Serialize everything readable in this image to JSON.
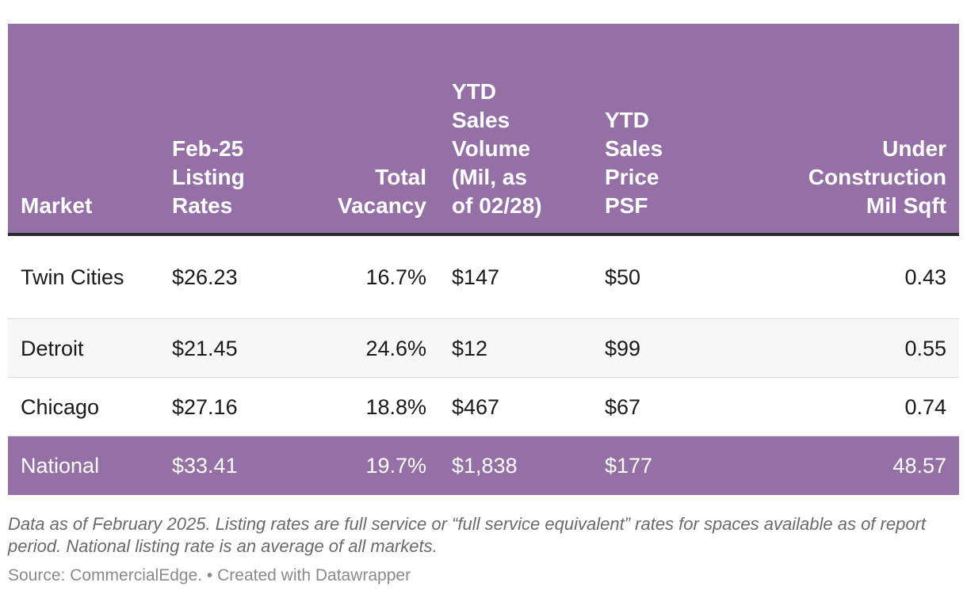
{
  "colors": {
    "header_bg": "#9570a6",
    "header_text": "#ffffff",
    "highlight_row_bg": "#9570a6",
    "alt_row_bg": "#f7f7f7",
    "body_text": "#1a1a1a",
    "notes_text": "#6a6a6a",
    "source_text": "#8a8a8a"
  },
  "chart_data": {
    "type": "table",
    "columns": [
      "Market",
      "Feb-25 Listing Rates",
      "Total Vacancy",
      "YTD Sales Volume (Mil, as of 02/28)",
      "YTD Sales Price PSF",
      "Under Construction Mil Sqft"
    ],
    "rows": [
      [
        "Twin Cities",
        "$26.23",
        "16.7%",
        "$147",
        "$50",
        "0.43"
      ],
      [
        "Detroit",
        "$21.45",
        "24.6%",
        "$12",
        "$99",
        "0.55"
      ],
      [
        "Chicago",
        "$27.16",
        "18.8%",
        "$467",
        "$67",
        "0.74"
      ],
      [
        "National",
        "$33.41",
        "19.7%",
        "$1,838",
        "$177",
        "48.57"
      ]
    ],
    "highlighted_row": "National",
    "notes": "Data as of February 2025. Listing rates are full service or “full service equivalent” rates for spaces available as of report period. National listing rate is an average of all markets.",
    "source": "Source: CommercialEdge. • Created with Datawrapper"
  }
}
